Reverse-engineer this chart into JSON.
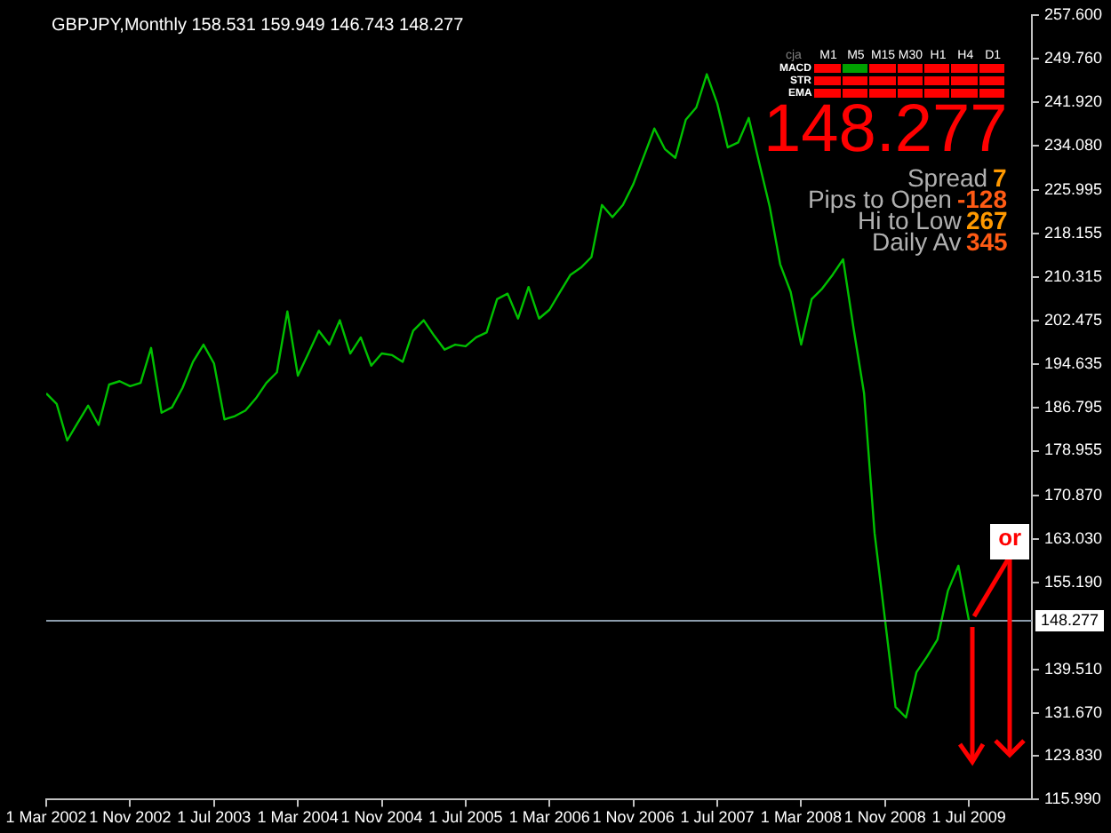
{
  "chart_data": {
    "type": "line",
    "title": "GBPJPY,Monthly  158.531 159.949 146.743 148.277",
    "x": [
      "2002-03",
      "2002-04",
      "2002-05",
      "2002-06",
      "2002-07",
      "2002-08",
      "2002-09",
      "2002-10",
      "2002-11",
      "2002-12",
      "2003-01",
      "2003-02",
      "2003-03",
      "2003-04",
      "2003-05",
      "2003-06",
      "2003-07",
      "2003-08",
      "2003-09",
      "2003-10",
      "2003-11",
      "2003-12",
      "2004-01",
      "2004-02",
      "2004-03",
      "2004-04",
      "2004-05",
      "2004-06",
      "2004-07",
      "2004-08",
      "2004-09",
      "2004-10",
      "2004-11",
      "2004-12",
      "2005-01",
      "2005-02",
      "2005-03",
      "2005-04",
      "2005-05",
      "2005-06",
      "2005-07",
      "2005-08",
      "2005-09",
      "2005-10",
      "2005-11",
      "2005-12",
      "2006-01",
      "2006-02",
      "2006-03",
      "2006-04",
      "2006-05",
      "2006-06",
      "2006-07",
      "2006-08",
      "2006-09",
      "2006-10",
      "2006-11",
      "2006-12",
      "2007-01",
      "2007-02",
      "2007-03",
      "2007-04",
      "2007-05",
      "2007-06",
      "2007-07",
      "2007-08",
      "2007-09",
      "2007-10",
      "2007-11",
      "2007-12",
      "2008-01",
      "2008-02",
      "2008-03",
      "2008-04",
      "2008-05",
      "2008-06",
      "2008-07",
      "2008-08",
      "2008-09",
      "2008-10",
      "2008-11",
      "2008-12",
      "2009-01",
      "2009-02",
      "2009-03",
      "2009-04",
      "2009-05",
      "2009-06",
      "2009-07"
    ],
    "series": [
      {
        "color": "#00c000",
        "values": [
          189.3,
          187.4,
          180.8,
          184.0,
          187.1,
          183.6,
          190.9,
          191.5,
          190.6,
          191.2,
          197.5,
          185.8,
          186.8,
          190.3,
          195.0,
          198.1,
          194.7,
          184.6,
          185.2,
          186.2,
          188.4,
          191.2,
          193.1,
          204.1,
          192.5,
          196.5,
          200.6,
          198.1,
          202.5,
          196.5,
          199.4,
          194.3,
          196.5,
          196.2,
          195.0,
          200.6,
          202.5,
          199.7,
          197.2,
          198.1,
          197.8,
          199.4,
          200.3,
          206.3,
          207.3,
          202.8,
          208.5,
          202.8,
          204.4,
          207.6,
          210.7,
          212.0,
          213.9,
          223.3,
          221.1,
          223.3,
          227.1,
          232.1,
          237.1,
          233.4,
          231.8,
          238.7,
          240.9,
          246.9,
          241.6,
          233.7,
          234.6,
          239.0,
          230.9,
          223.0,
          212.6,
          207.6,
          198.1,
          206.3,
          208.2,
          210.7,
          213.5,
          201.0,
          189.3,
          164.1,
          148.4,
          132.7,
          130.8,
          139.0,
          141.8,
          144.9,
          153.7,
          158.2,
          148.3
        ]
      }
    ],
    "xlim": [
      "2002-03",
      "2010-01"
    ],
    "xticks": [
      {
        "value": "2002-03",
        "label": "1 Mar 2002"
      },
      {
        "value": "2002-11",
        "label": "1 Nov 2002"
      },
      {
        "value": "2003-07",
        "label": "1 Jul 2003"
      },
      {
        "value": "2004-03",
        "label": "1 Mar 2004"
      },
      {
        "value": "2004-11",
        "label": "1 Nov 2004"
      },
      {
        "value": "2005-07",
        "label": "1 Jul 2005"
      },
      {
        "value": "2006-03",
        "label": "1 Mar 2006"
      },
      {
        "value": "2006-11",
        "label": "1 Nov 2006"
      },
      {
        "value": "2007-07",
        "label": "1 Jul 2007"
      },
      {
        "value": "2008-03",
        "label": "1 Mar 2008"
      },
      {
        "value": "2008-11",
        "label": "1 Nov 2008"
      },
      {
        "value": "2009-07",
        "label": "1 Jul 2009"
      }
    ],
    "ylim": [
      115.99,
      257.6
    ],
    "yticks": [
      {
        "value": 257.6,
        "label": "257.600"
      },
      {
        "value": 249.76,
        "label": "249.760"
      },
      {
        "value": 241.92,
        "label": "241.920"
      },
      {
        "value": 234.08,
        "label": "234.080"
      },
      {
        "value": 225.995,
        "label": "225.995"
      },
      {
        "value": 218.155,
        "label": "218.155"
      },
      {
        "value": 210.315,
        "label": "210.315"
      },
      {
        "value": 202.475,
        "label": "202.475"
      },
      {
        "value": 194.635,
        "label": "194.635"
      },
      {
        "value": 186.795,
        "label": "186.795"
      },
      {
        "value": 178.955,
        "label": "178.955"
      },
      {
        "value": 170.87,
        "label": "170.870"
      },
      {
        "value": 163.03,
        "label": "163.030"
      },
      {
        "value": 155.19,
        "label": "155.190"
      },
      {
        "value": 139.51,
        "label": "139.510"
      },
      {
        "value": 131.67,
        "label": "131.670"
      },
      {
        "value": 123.83,
        "label": "123.830"
      },
      {
        "value": 115.99,
        "label": "115.990"
      }
    ],
    "grid": false,
    "marker": "none",
    "ref_lines": [
      {
        "axis": "y",
        "value": 148.277,
        "label": "148.277",
        "color": "#8c9cac"
      }
    ],
    "annotations": [
      "148.277",
      "Spread",
      "7",
      "Pips to Open",
      "-128",
      "Hi to Low",
      "267",
      "Daily Av",
      "345",
      "cja",
      "M1",
      "M5",
      "M15",
      "M30",
      "H1",
      "H4",
      "D1",
      "MACD",
      "STR",
      "EMA",
      {
        "text": "or",
        "x": "2009-07",
        "y": 148.3
      }
    ]
  }
}
